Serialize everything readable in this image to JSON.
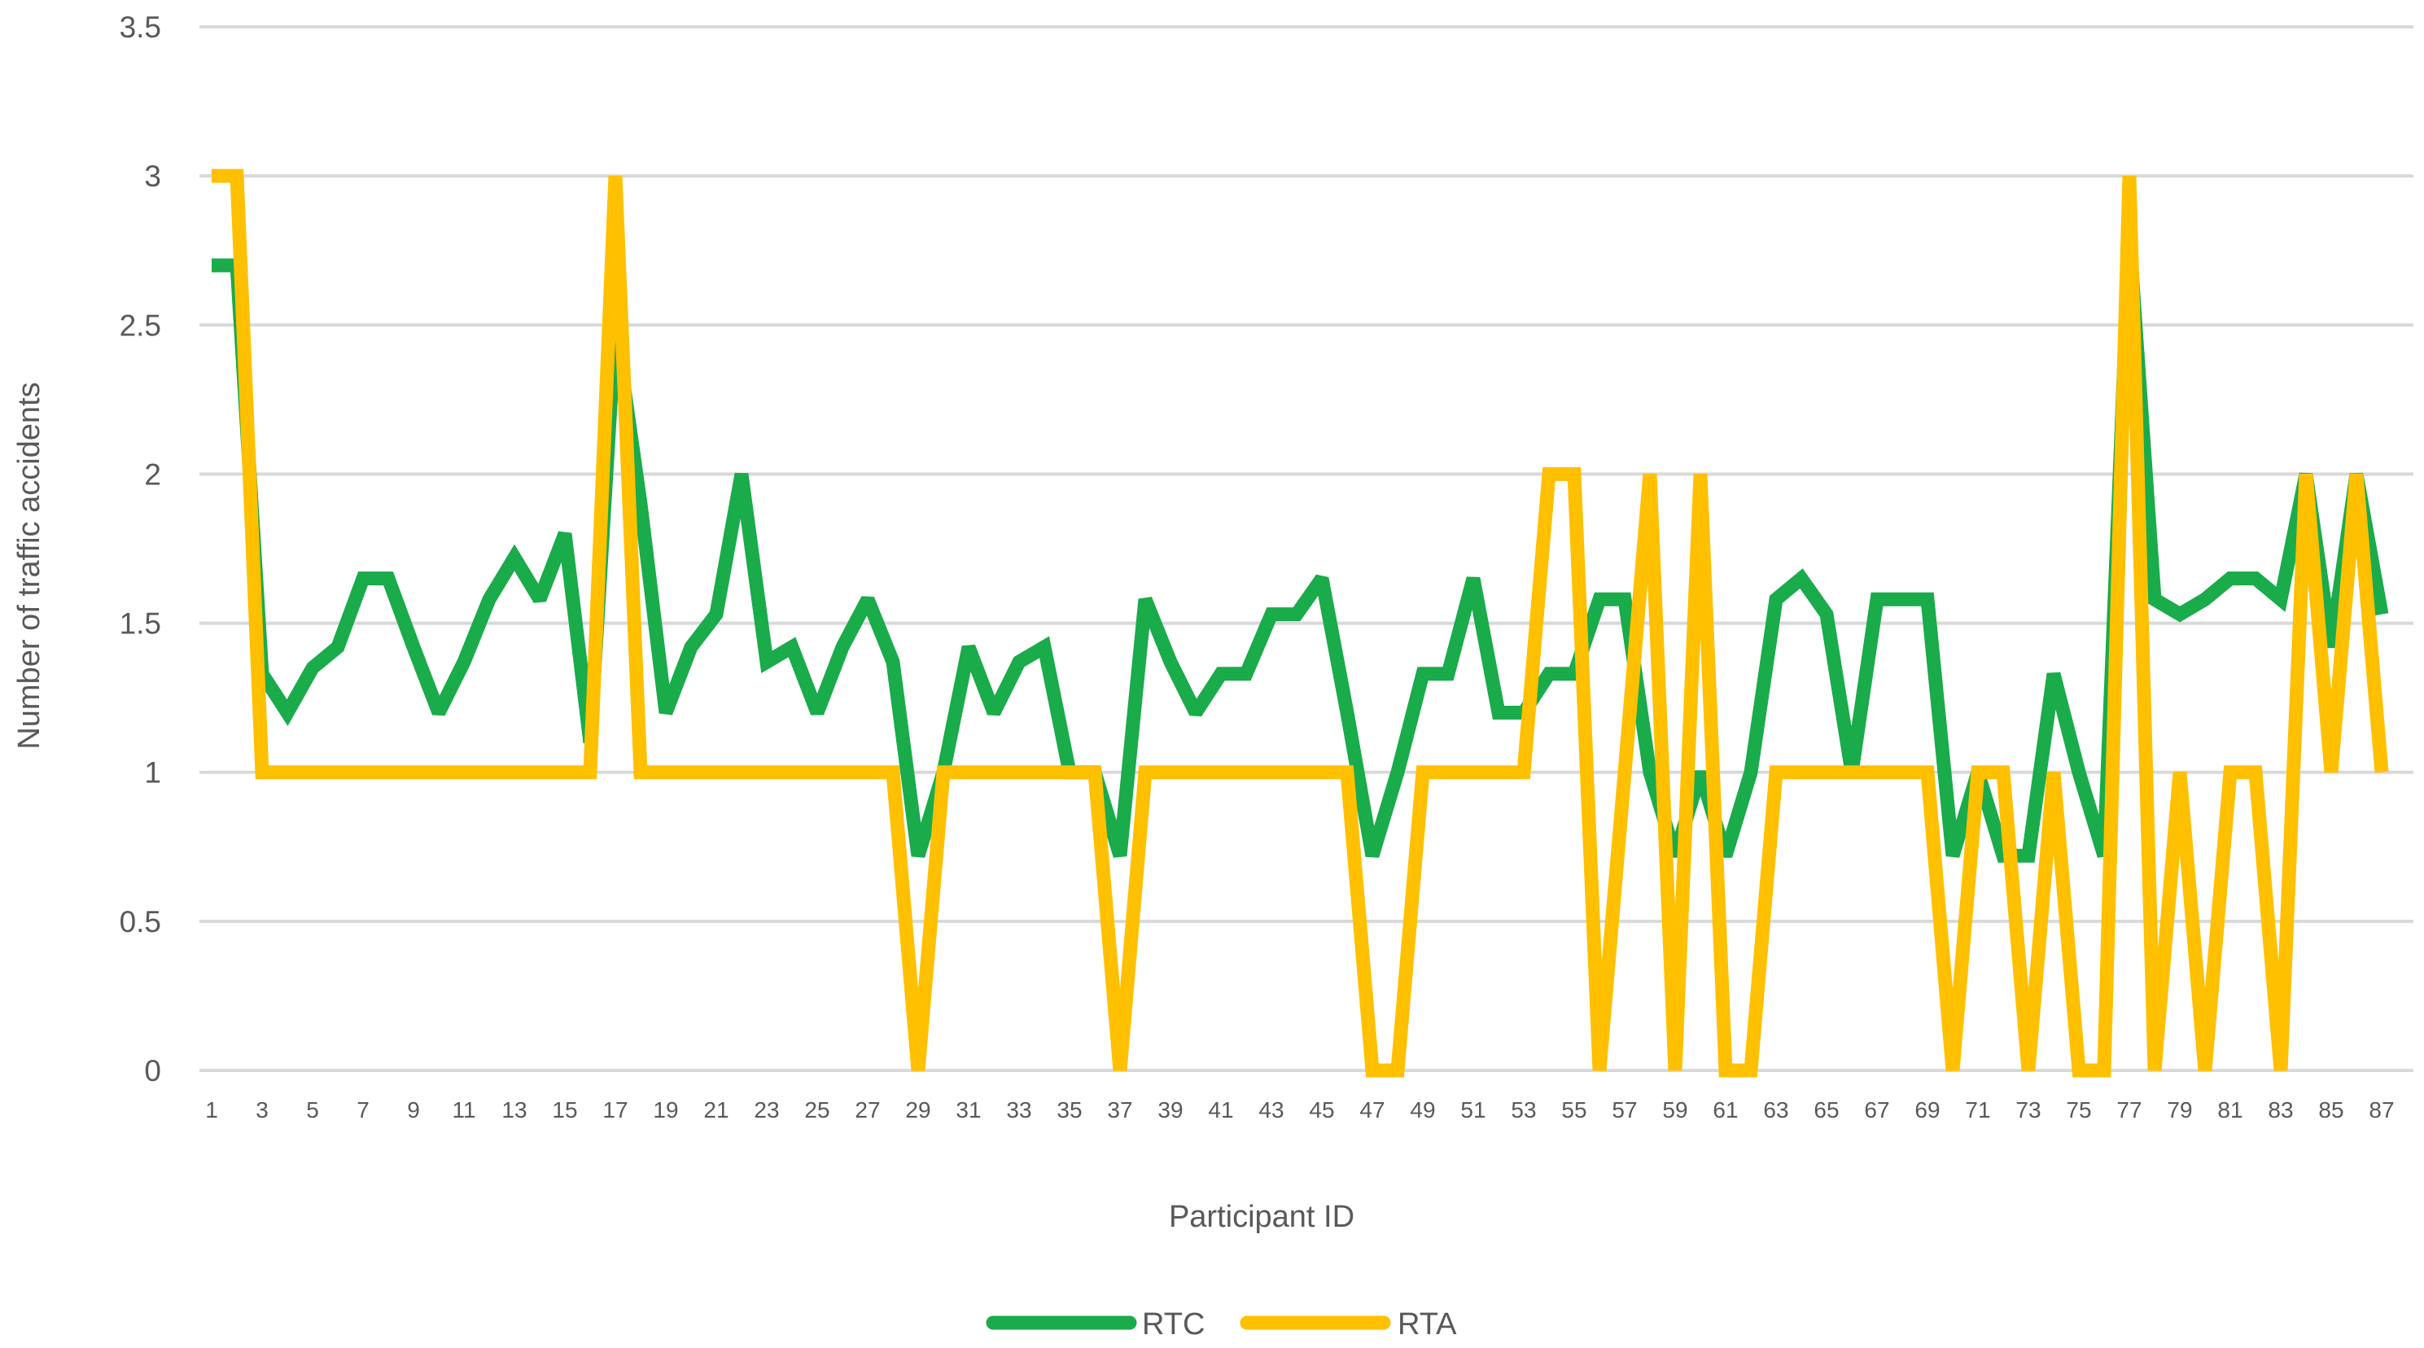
{
  "chart_data": {
    "type": "line",
    "title": "",
    "xlabel": "Participant ID",
    "ylabel": "Number of traffic accidents",
    "ylim": [
      0,
      3.5
    ],
    "yticks": [
      "0",
      "0.5",
      "1",
      "1.5",
      "2",
      "2.5",
      "3",
      "3.5"
    ],
    "x": [
      1,
      2,
      3,
      4,
      5,
      6,
      7,
      8,
      9,
      10,
      11,
      12,
      13,
      14,
      15,
      16,
      17,
      18,
      19,
      20,
      21,
      22,
      23,
      24,
      25,
      26,
      27,
      28,
      29,
      30,
      31,
      32,
      33,
      34,
      35,
      36,
      37,
      38,
      39,
      40,
      41,
      42,
      43,
      44,
      45,
      46,
      47,
      48,
      49,
      50,
      51,
      52,
      53,
      54,
      55,
      56,
      57,
      58,
      59,
      60,
      61,
      62,
      63,
      64,
      65,
      66,
      67,
      68,
      69,
      70,
      71,
      72,
      73,
      74,
      75,
      76,
      77,
      78,
      79,
      80,
      81,
      82,
      83,
      84,
      85,
      86,
      87
    ],
    "xtick_labels": [
      "1",
      "3",
      "5",
      "7",
      "9",
      "11",
      "13",
      "15",
      "17",
      "19",
      "21",
      "23",
      "25",
      "27",
      "29",
      "31",
      "33",
      "35",
      "37",
      "39",
      "41",
      "43",
      "45",
      "47",
      "49",
      "51",
      "53",
      "55",
      "57",
      "59",
      "61",
      "63",
      "65",
      "67",
      "69",
      "71",
      "73",
      "75",
      "77",
      "79",
      "81",
      "83",
      "85",
      "87"
    ],
    "grid": true,
    "legend_position": "bottom",
    "series": [
      {
        "name": "RTC",
        "color": "#1aab4a",
        "values": [
          2.7,
          2.7,
          1.33,
          1.2,
          1.35,
          1.42,
          1.65,
          1.65,
          1.42,
          1.2,
          1.37,
          1.58,
          1.72,
          1.58,
          1.8,
          1.1,
          2.5,
          1.9,
          1.2,
          1.42,
          1.53,
          2.0,
          1.37,
          1.42,
          1.2,
          1.42,
          1.58,
          1.37,
          0.72,
          1.0,
          1.42,
          1.2,
          1.37,
          1.42,
          1.0,
          1.0,
          0.72,
          1.58,
          1.37,
          1.2,
          1.33,
          1.33,
          1.53,
          1.53,
          1.65,
          1.2,
          0.72,
          1.0,
          1.33,
          1.33,
          1.65,
          1.2,
          1.2,
          1.33,
          1.33,
          1.58,
          1.58,
          1.0,
          0.72,
          1.0,
          0.72,
          1.0,
          1.58,
          1.65,
          1.53,
          1.0,
          1.58,
          1.58,
          1.58,
          0.72,
          1.0,
          0.72,
          0.72,
          1.33,
          1.0,
          0.72,
          2.8,
          1.58,
          1.53,
          1.58,
          1.65,
          1.65,
          1.58,
          2.0,
          1.42,
          2.0,
          1.53
        ]
      },
      {
        "name": "RTA",
        "color": "#ffc000",
        "values": [
          3,
          3,
          1,
          1,
          1,
          1,
          1,
          1,
          1,
          1,
          1,
          1,
          1,
          1,
          1,
          1,
          3,
          1,
          1,
          1,
          1,
          1,
          1,
          1,
          1,
          1,
          1,
          1,
          0,
          1,
          1,
          1,
          1,
          1,
          1,
          1,
          0,
          1,
          1,
          1,
          1,
          1,
          1,
          1,
          1,
          1,
          0,
          0,
          1,
          1,
          1,
          1,
          1,
          2,
          2,
          0,
          1,
          2,
          0,
          2,
          0,
          0,
          1,
          1,
          1,
          1,
          1,
          1,
          1,
          0,
          1,
          1,
          0,
          1,
          0,
          0,
          3,
          0,
          1,
          0,
          1,
          1,
          0,
          2,
          1,
          2,
          1
        ]
      }
    ]
  }
}
